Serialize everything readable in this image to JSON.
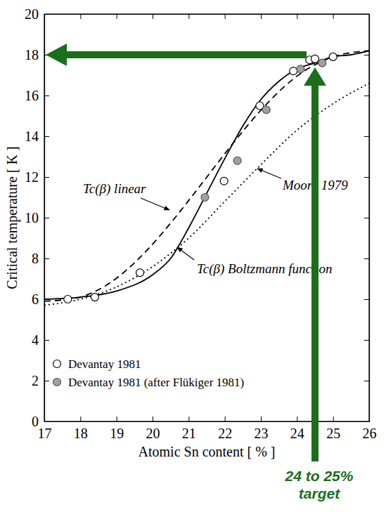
{
  "chart_data": {
    "type": "scatter",
    "x_label": "Atomic Sn content [ % ]",
    "y_label": "Critical temperature [ K ]",
    "xlim": [
      17,
      26
    ],
    "xticks": [
      17,
      18,
      19,
      20,
      21,
      22,
      23,
      24,
      25,
      26
    ],
    "ylim": [
      0,
      20
    ],
    "yticks": [
      0,
      2,
      4,
      6,
      8,
      10,
      12,
      14,
      16,
      18,
      20
    ],
    "grid": false,
    "legend": "bottom-left",
    "series": [
      {
        "name": "Devantay 1981",
        "type": "scatter",
        "marker": "open-circle",
        "color": "#000000",
        "x": [
          17.65,
          18.4,
          19.65,
          21.98,
          22.97,
          23.9,
          24.35,
          24.5,
          25.0
        ],
        "values": [
          6.0,
          6.1,
          7.3,
          11.8,
          15.5,
          17.2,
          17.75,
          17.8,
          17.9
        ]
      },
      {
        "name": "Devantay 1981 (after Flükiger 1981)",
        "type": "scatter",
        "marker": "filled-circle",
        "color": "#a0a0a0",
        "x": [
          21.45,
          22.35,
          23.15,
          24.1,
          24.7
        ],
        "values": [
          11.0,
          12.8,
          15.3,
          17.3,
          17.6
        ]
      },
      {
        "name": "Tc(β) Boltzmann function",
        "type": "line",
        "line_style": "solid",
        "color": "#000000",
        "x": [
          17,
          18,
          19,
          20,
          20.5,
          21,
          21.5,
          22,
          22.5,
          23,
          23.5,
          24,
          24.5,
          25,
          25.5,
          26
        ],
        "values": [
          6.0,
          6.1,
          6.4,
          7.2,
          8.0,
          9.5,
          11.2,
          12.9,
          14.5,
          15.8,
          16.7,
          17.3,
          17.6,
          17.9,
          18.0,
          18.2
        ]
      },
      {
        "name": "Tc(β) linear",
        "type": "line",
        "line_style": "dashed",
        "color": "#000000",
        "x": [
          17,
          18,
          18.3,
          24.6,
          25,
          26
        ],
        "values": [
          5.9,
          6.1,
          6.3,
          17.6,
          17.9,
          18.2
        ]
      },
      {
        "name": "Moore 1979",
        "type": "line",
        "line_style": "dotted",
        "color": "#000000",
        "x": [
          17,
          18,
          19,
          20,
          21,
          22,
          23,
          24,
          25,
          26
        ],
        "values": [
          5.7,
          6.0,
          6.6,
          7.6,
          9.0,
          10.8,
          12.6,
          14.3,
          15.6,
          16.6
        ]
      }
    ],
    "annotations": [
      {
        "text": "24 to 25% target",
        "x": 24.5,
        "y": 18,
        "color": "#1b6e1b"
      }
    ]
  }
}
